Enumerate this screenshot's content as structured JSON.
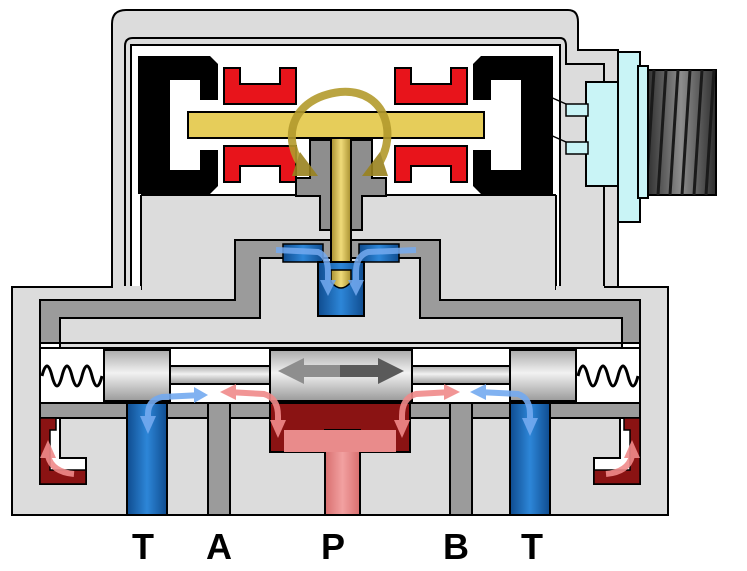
{
  "diagram": {
    "ports": [
      {
        "id": "T",
        "label": "T"
      },
      {
        "id": "A",
        "label": "A"
      },
      {
        "id": "P",
        "label": "P"
      },
      {
        "id": "B",
        "label": "B"
      },
      {
        "id": "T2",
        "label": "T"
      }
    ],
    "colors": {
      "housing": "#dcdcdc",
      "passage": "#9b9b9b",
      "outline": "#000000",
      "torque_motor_magnet": "#000000",
      "coil": "#e8141b",
      "armature": "#e6cd5a",
      "flapper": "#e0c24f",
      "supply_pressure": "#e98b8b",
      "supply_dark": "#8a1313",
      "return_tank": "#1f6fbf",
      "flow_arrow_red": "#f08a8a",
      "flow_arrow_blue": "#74aaf0",
      "spool_arrow": "#707070",
      "connector": "#c9f4f6",
      "thread": "#555555"
    },
    "icons": [
      "spring-icon",
      "rotation-arrow-icon",
      "flow-arrow-icon",
      "double-arrow-icon"
    ]
  }
}
